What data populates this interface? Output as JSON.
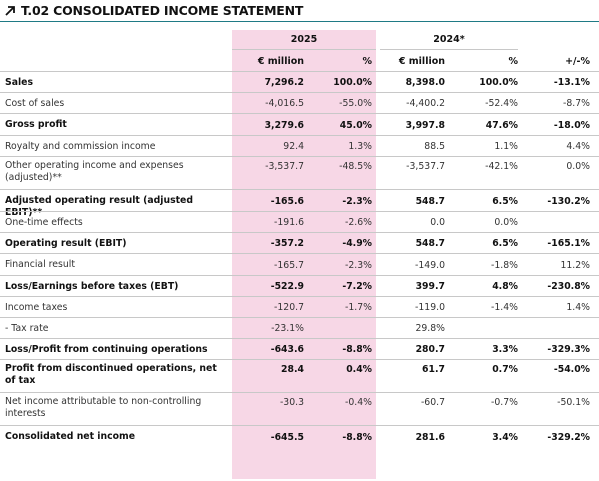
{
  "title": "T.02 CONSOLIDATED INCOME STATEMENT",
  "header": {
    "year_2025": "2025",
    "year_2024": "2024*",
    "col_million_2025": "€ million",
    "col_pct_2025": "%",
    "col_million_2024": "€ million",
    "col_pct_2024": "%",
    "col_change": "+/-%"
  },
  "rows": [
    {
      "label": "Sales",
      "bold": true,
      "m25": "7,296.2",
      "p25": "100.0%",
      "m24": "8,398.0",
      "p24": "100.0%",
      "chg": "-13.1%"
    },
    {
      "label": "Cost of sales",
      "bold": false,
      "m25": "-4,016.5",
      "p25": "-55.0%",
      "m24": "-4,400.2",
      "p24": "-52.4%",
      "chg": "-8.7%"
    },
    {
      "label": "Gross profit",
      "bold": true,
      "m25": "3,279.6",
      "p25": "45.0%",
      "m24": "3,997.8",
      "p24": "47.6%",
      "chg": "-18.0%"
    },
    {
      "label": "Royalty and commission income",
      "bold": false,
      "m25": "92.4",
      "p25": "1.3%",
      "m24": "88.5",
      "p24": "1.1%",
      "chg": "4.4%"
    },
    {
      "label": "Other operating income and expenses (adjusted)**",
      "bold": false,
      "m25": "-3,537.7",
      "p25": "-48.5%",
      "m24": "-3,537.7",
      "p24": "-42.1%",
      "chg": "0.0%"
    },
    {
      "label": "Adjusted operating result (adjusted EBIT)**",
      "bold": true,
      "m25": "-165.6",
      "p25": "-2.3%",
      "m24": "548.7",
      "p24": "6.5%",
      "chg": "-130.2%"
    },
    {
      "label": "One-time effects",
      "bold": false,
      "m25": "-191.6",
      "p25": "-2.6%",
      "m24": "0.0",
      "p24": "0.0%",
      "chg": ""
    },
    {
      "label": "Operating result (EBIT)",
      "bold": true,
      "m25": "-357.2",
      "p25": "-4.9%",
      "m24": "548.7",
      "p24": "6.5%",
      "chg": "-165.1%"
    },
    {
      "label": "Financial result",
      "bold": false,
      "m25": "-165.7",
      "p25": "-2.3%",
      "m24": "-149.0",
      "p24": "-1.8%",
      "chg": "11.2%"
    },
    {
      "label": "Loss/Earnings before taxes (EBT)",
      "bold": true,
      "m25": "-522.9",
      "p25": "-7.2%",
      "m24": "399.7",
      "p24": "4.8%",
      "chg": "-230.8%"
    },
    {
      "label": "Income taxes",
      "bold": false,
      "m25": "-120.7",
      "p25": "-1.7%",
      "m24": "-119.0",
      "p24": "-1.4%",
      "chg": "1.4%"
    },
    {
      "label": "- Tax rate",
      "bold": false,
      "m25": "-23.1%",
      "p25": "",
      "m24": "29.8%",
      "p24": "",
      "chg": ""
    },
    {
      "label": "Loss/Profit from continuing operations",
      "bold": true,
      "m25": "-643.6",
      "p25": "-8.8%",
      "m24": "280.7",
      "p24": "3.3%",
      "chg": "-329.3%"
    },
    {
      "label": "Profit from discontinued operations, net of tax",
      "bold": true,
      "m25": "28.4",
      "p25": "0.4%",
      "m24": "61.7",
      "p24": "0.7%",
      "chg": "-54.0%"
    },
    {
      "label": "Net income attributable to non-controlling interests",
      "bold": false,
      "m25": "-30.3",
      "p25": "-0.4%",
      "m24": "-60.7",
      "p24": "-0.7%",
      "chg": "-50.1%"
    },
    {
      "label": "Consolidated net income",
      "bold": true,
      "m25": "-645.5",
      "p25": "-8.8%",
      "m24": "281.6",
      "p24": "3.4%",
      "chg": "-329.2%"
    }
  ]
}
